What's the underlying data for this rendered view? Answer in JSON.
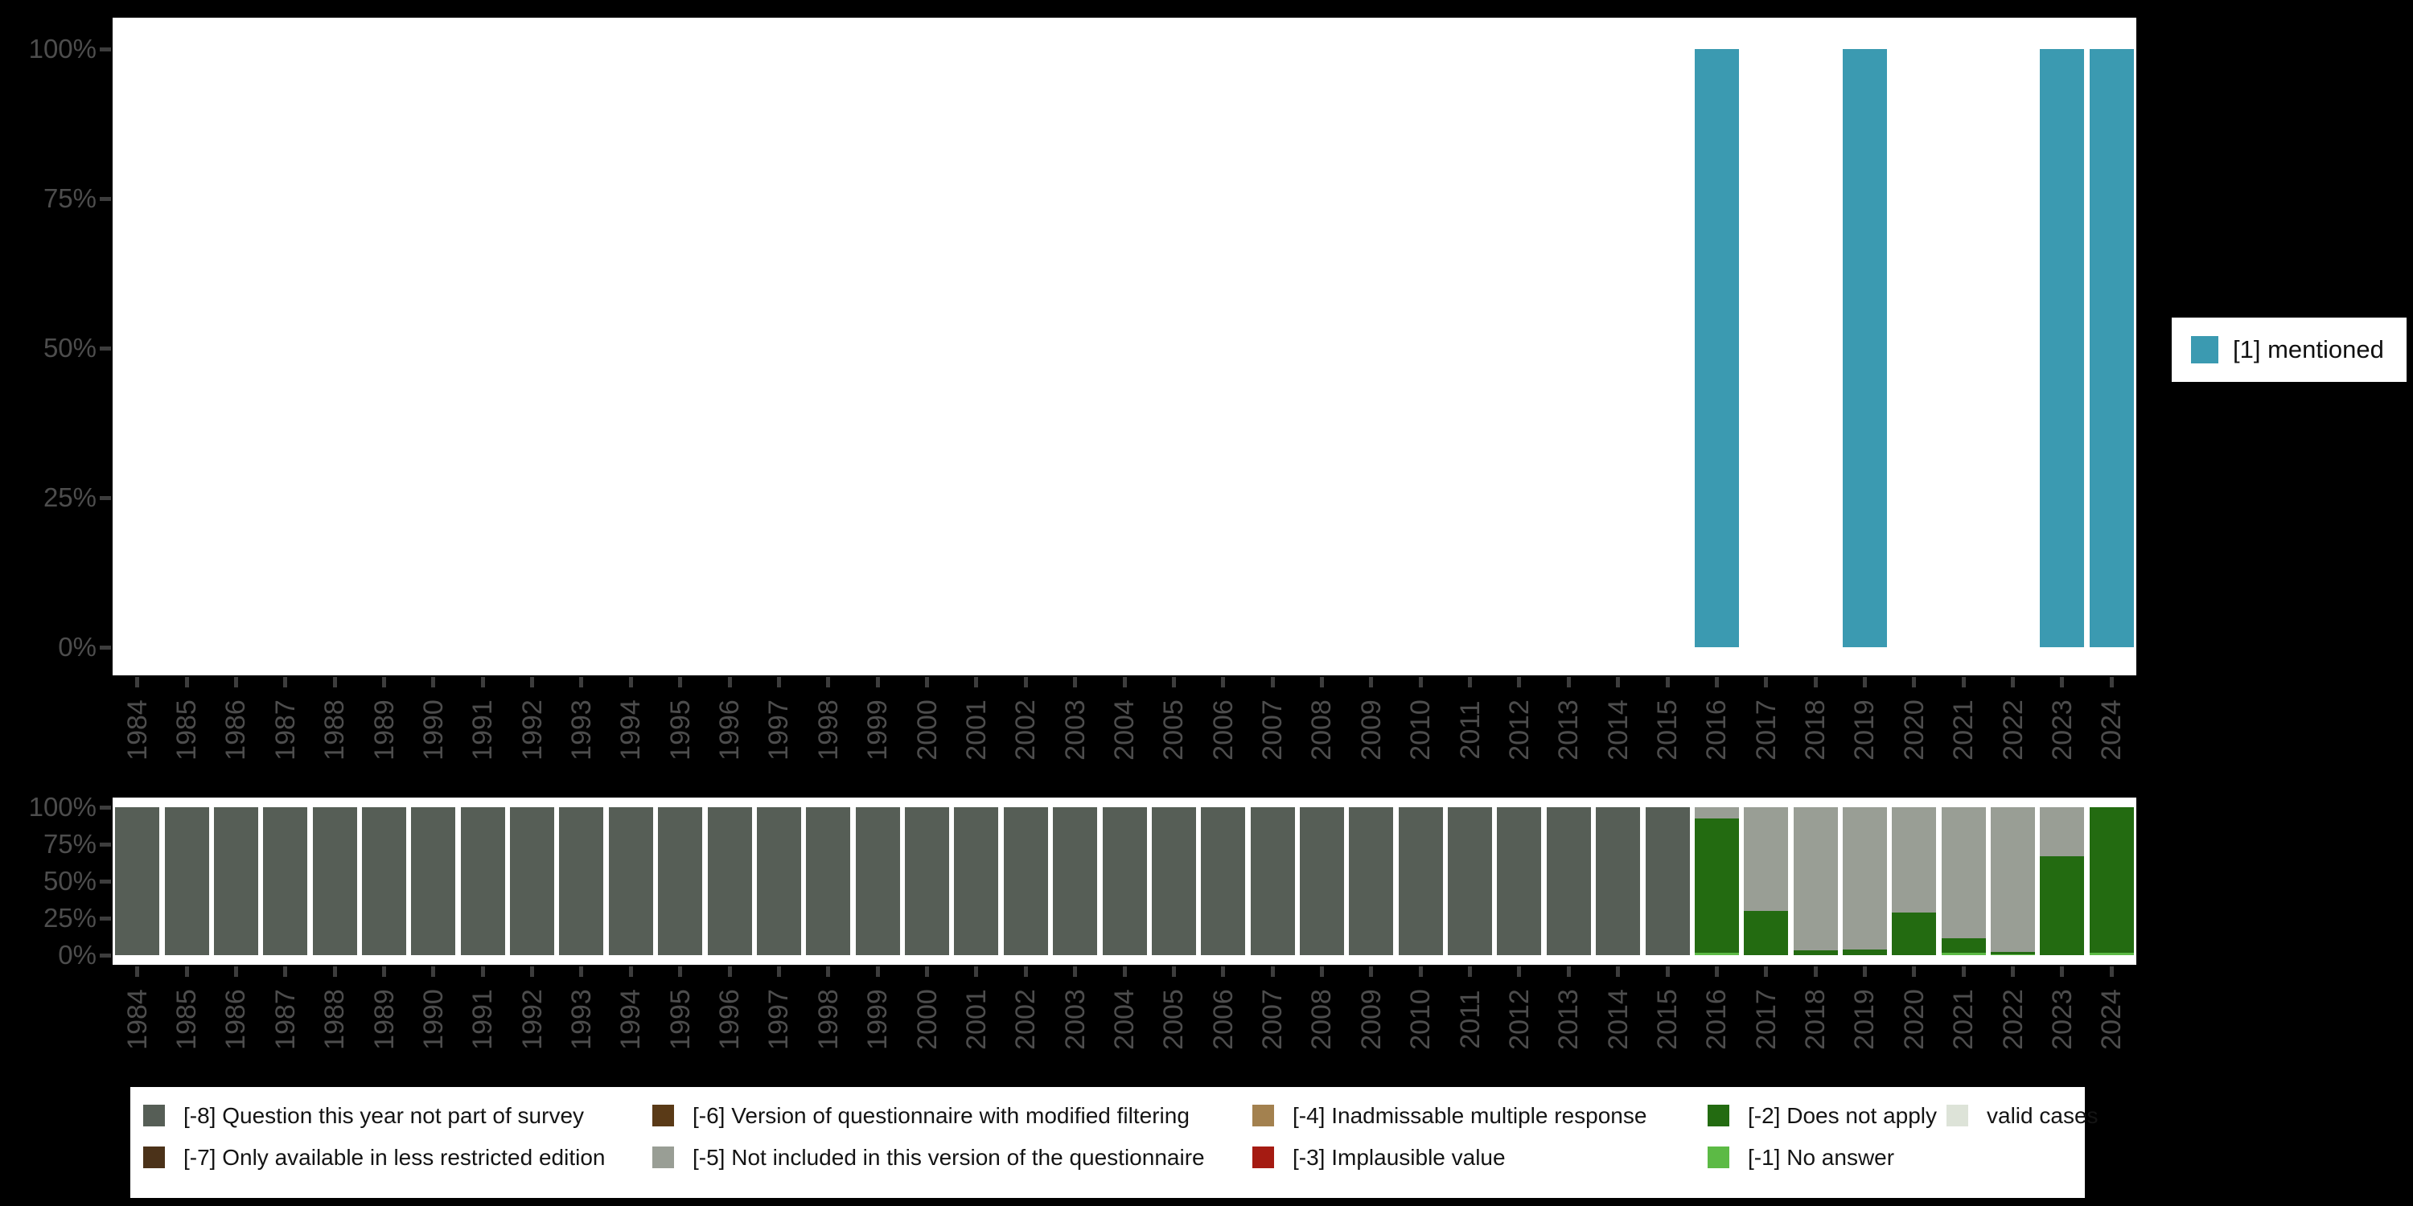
{
  "figure": {
    "background": "#000000",
    "panel_background": "#ffffff"
  },
  "axis": {
    "tick_color": "#3d3d3d",
    "label_color": "#4d4d4d",
    "y_tick_labels": [
      "100%",
      "75%",
      "50%",
      "25%",
      "0%"
    ],
    "y_tick_values": [
      100,
      75,
      50,
      25,
      0
    ]
  },
  "top_legend": {
    "label": "[1] mentioned",
    "color": "#3b9ab1"
  },
  "bottom_legend": {
    "items": [
      {
        "code": "-8",
        "label": "[-8] Question this year not part of survey",
        "color": "#565e56",
        "col": 0,
        "row": 0
      },
      {
        "code": "-7",
        "label": "[-7] Only available in less restricted edition",
        "color": "#4b3219",
        "col": 0,
        "row": 1
      },
      {
        "code": "-6",
        "label": "[-6] Version of questionnaire with modified filtering",
        "color": "#5a3a17",
        "col": 1,
        "row": 0
      },
      {
        "code": "-5",
        "label": "[-5] Not included in this version of the questionnaire",
        "color": "#999e95",
        "col": 1,
        "row": 1
      },
      {
        "code": "-4",
        "label": "[-4] Inadmissable multiple response",
        "color": "#a3814f",
        "col": 2,
        "row": 0
      },
      {
        "code": "-3",
        "label": "[-3] Implausible value",
        "color": "#a51b12",
        "col": 2,
        "row": 1
      },
      {
        "code": "-2",
        "label": "[-2] Does not apply",
        "color": "#236b11",
        "col": 3,
        "row": 0
      },
      {
        "code": "-1",
        "label": "[-1] No answer",
        "color": "#5cba45",
        "col": 3,
        "row": 1
      },
      {
        "code": "valid",
        "label": "valid cases",
        "color": "#dde3d8",
        "col": 4,
        "row": 0
      }
    ]
  },
  "chart_data": [
    {
      "type": "bar",
      "title": "",
      "xlabel": "",
      "ylabel": "",
      "ylim": [
        0,
        100
      ],
      "unit": "percent",
      "grid": false,
      "legend_position": "right",
      "x": [
        1984,
        1985,
        1986,
        1987,
        1988,
        1989,
        1990,
        1991,
        1992,
        1993,
        1994,
        1995,
        1996,
        1997,
        1998,
        1999,
        2000,
        2001,
        2002,
        2003,
        2004,
        2005,
        2006,
        2007,
        2008,
        2009,
        2010,
        2011,
        2012,
        2013,
        2014,
        2015,
        2016,
        2017,
        2018,
        2019,
        2020,
        2021,
        2022,
        2023,
        2024
      ],
      "series": [
        {
          "name": "[1] mentioned",
          "color": "#3b9ab1",
          "values": [
            0,
            0,
            0,
            0,
            0,
            0,
            0,
            0,
            0,
            0,
            0,
            0,
            0,
            0,
            0,
            0,
            0,
            0,
            0,
            0,
            0,
            0,
            0,
            0,
            0,
            0,
            0,
            0,
            0,
            0,
            0,
            0,
            100,
            0,
            0,
            100,
            0,
            0,
            0,
            100,
            100
          ]
        }
      ]
    },
    {
      "type": "stacked_bar",
      "title": "",
      "xlabel": "",
      "ylabel": "",
      "ylim": [
        0,
        100
      ],
      "unit": "percent",
      "grid": false,
      "legend_position": "bottom",
      "x": [
        1984,
        1985,
        1986,
        1987,
        1988,
        1989,
        1990,
        1991,
        1992,
        1993,
        1994,
        1995,
        1996,
        1997,
        1998,
        1999,
        2000,
        2001,
        2002,
        2003,
        2004,
        2005,
        2006,
        2007,
        2008,
        2009,
        2010,
        2011,
        2012,
        2013,
        2014,
        2015,
        2016,
        2017,
        2018,
        2019,
        2020,
        2021,
        2022,
        2023,
        2024
      ],
      "stack_order_bottom_to_top": [
        "valid",
        "-1",
        "-2",
        "-3",
        "-4",
        "-5",
        "-6",
        "-7",
        "-8"
      ],
      "series": [
        {
          "name": "[-8] Question this year not part of survey",
          "code": "-8",
          "color": "#565e56",
          "values": [
            100,
            100,
            100,
            100,
            100,
            100,
            100,
            100,
            100,
            100,
            100,
            100,
            100,
            100,
            100,
            100,
            100,
            100,
            100,
            100,
            100,
            100,
            100,
            100,
            100,
            100,
            100,
            100,
            100,
            100,
            100,
            100,
            0,
            0,
            0,
            0,
            0,
            0,
            0,
            0,
            0
          ]
        },
        {
          "name": "[-7] Only available in less restricted edition",
          "code": "-7",
          "color": "#4b3219",
          "values": [
            0,
            0,
            0,
            0,
            0,
            0,
            0,
            0,
            0,
            0,
            0,
            0,
            0,
            0,
            0,
            0,
            0,
            0,
            0,
            0,
            0,
            0,
            0,
            0,
            0,
            0,
            0,
            0,
            0,
            0,
            0,
            0,
            0,
            0,
            0,
            0,
            0,
            0,
            0,
            0,
            0
          ]
        },
        {
          "name": "[-6] Version of questionnaire with modified filtering",
          "code": "-6",
          "color": "#5a3a17",
          "values": [
            0,
            0,
            0,
            0,
            0,
            0,
            0,
            0,
            0,
            0,
            0,
            0,
            0,
            0,
            0,
            0,
            0,
            0,
            0,
            0,
            0,
            0,
            0,
            0,
            0,
            0,
            0,
            0,
            0,
            0,
            0,
            0,
            0,
            0,
            0,
            0,
            0,
            0,
            0,
            0,
            0
          ]
        },
        {
          "name": "[-5] Not included in this version of the questionnaire",
          "code": "-5",
          "color": "#999e95",
          "values": [
            0,
            0,
            0,
            0,
            0,
            0,
            0,
            0,
            0,
            0,
            0,
            0,
            0,
            0,
            0,
            0,
            0,
            0,
            0,
            0,
            0,
            0,
            0,
            0,
            0,
            0,
            0,
            0,
            0,
            0,
            0,
            0,
            7.5,
            70,
            97,
            96,
            71,
            88.5,
            98,
            33,
            0
          ]
        },
        {
          "name": "[-4] Inadmissable multiple response",
          "code": "-4",
          "color": "#a3814f",
          "values": [
            0,
            0,
            0,
            0,
            0,
            0,
            0,
            0,
            0,
            0,
            0,
            0,
            0,
            0,
            0,
            0,
            0,
            0,
            0,
            0,
            0,
            0,
            0,
            0,
            0,
            0,
            0,
            0,
            0,
            0,
            0,
            0,
            0,
            0,
            0,
            0,
            0,
            0,
            0,
            0,
            0
          ]
        },
        {
          "name": "[-3] Implausible value",
          "code": "-3",
          "color": "#a51b12",
          "values": [
            0,
            0,
            0,
            0,
            0,
            0,
            0,
            0,
            0,
            0,
            0,
            0,
            0,
            0,
            0,
            0,
            0,
            0,
            0,
            0,
            0,
            0,
            0,
            0,
            0,
            0,
            0,
            0,
            0,
            0,
            0,
            0,
            0,
            0,
            0,
            0,
            0,
            0,
            0,
            0,
            0
          ]
        },
        {
          "name": "[-2] Does not apply",
          "code": "-2",
          "color": "#236b11",
          "values": [
            0,
            0,
            0,
            0,
            0,
            0,
            0,
            0,
            0,
            0,
            0,
            0,
            0,
            0,
            0,
            0,
            0,
            0,
            0,
            0,
            0,
            0,
            0,
            0,
            0,
            0,
            0,
            0,
            0,
            0,
            0,
            0,
            91,
            30,
            3,
            4,
            29,
            10,
            1.2,
            67,
            98.5
          ]
        },
        {
          "name": "[-1] No answer",
          "code": "-1",
          "color": "#5cba45",
          "values": [
            0,
            0,
            0,
            0,
            0,
            0,
            0,
            0,
            0,
            0,
            0,
            0,
            0,
            0,
            0,
            0,
            0,
            0,
            0,
            0,
            0,
            0,
            0,
            0,
            0,
            0,
            0,
            0,
            0,
            0,
            0,
            0,
            1.5,
            0,
            0,
            0,
            0,
            1.5,
            0.8,
            0,
            1.5
          ]
        },
        {
          "name": "valid cases",
          "code": "valid",
          "color": "#dde3d8",
          "values": [
            0,
            0,
            0,
            0,
            0,
            0,
            0,
            0,
            0,
            0,
            0,
            0,
            0,
            0,
            0,
            0,
            0,
            0,
            0,
            0,
            0,
            0,
            0,
            0,
            0,
            0,
            0,
            0,
            0,
            0,
            0,
            0,
            0,
            0,
            0,
            0,
            0,
            0,
            0,
            0,
            0
          ]
        }
      ]
    }
  ]
}
